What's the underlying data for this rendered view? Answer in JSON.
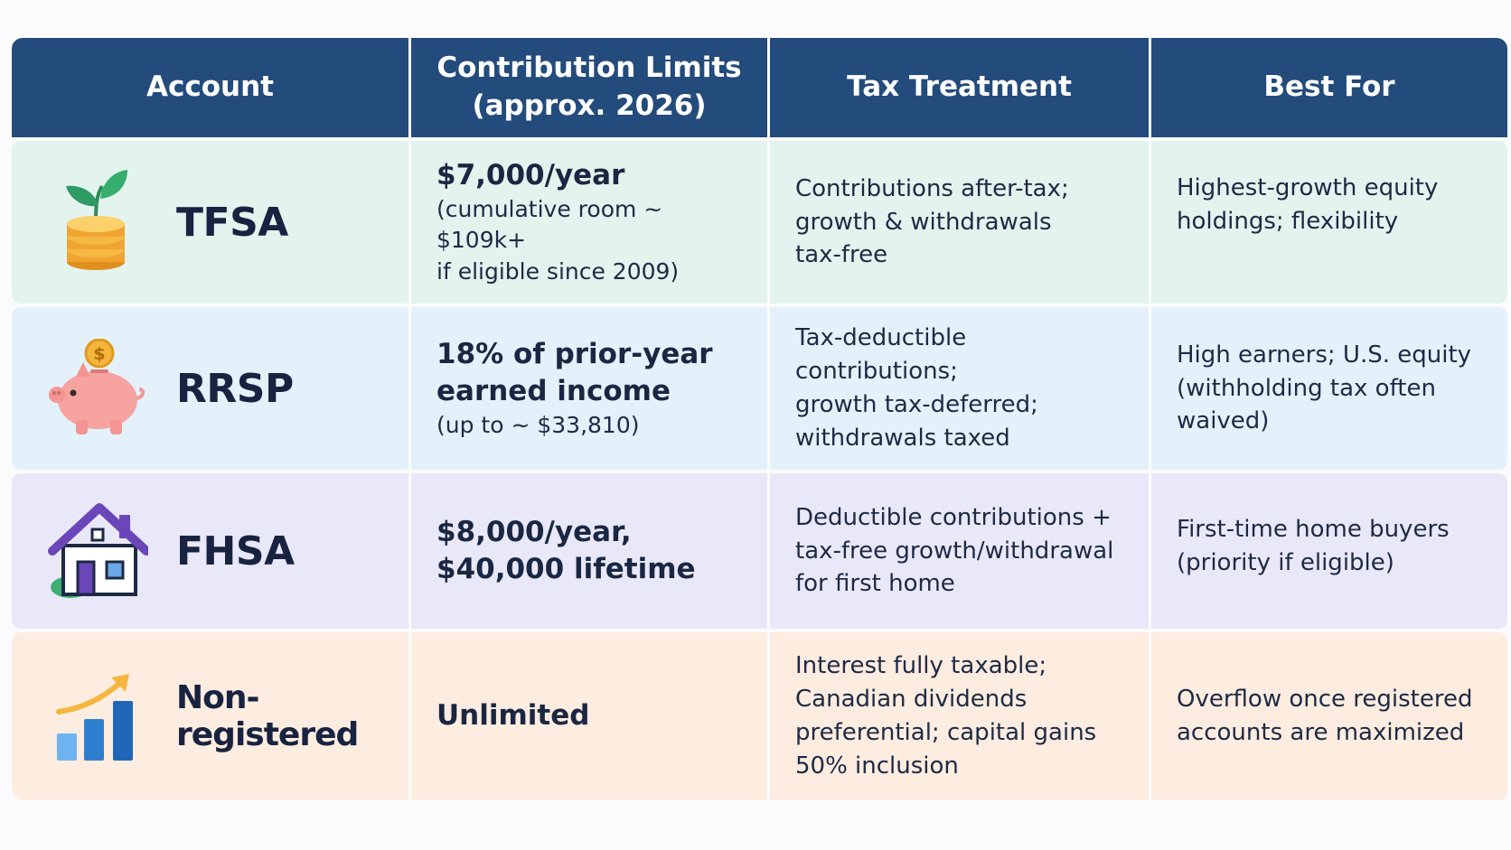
{
  "header": {
    "account": "Account",
    "limits": "Contribution Limits\n(approx. 2026)",
    "tax": "Tax Treatment",
    "best": "Best For"
  },
  "rows": [
    {
      "account": "TFSA",
      "icon": "plant-coins-icon",
      "limit_main": "$7,000/year",
      "limit_sub": "(cumulative room ~ $109k+\nif eligible since 2009)",
      "tax": "Contributions after-tax;\ngrowth & withdrawals\ntax-free",
      "best": "Highest-growth equity\nholdings; flexibility",
      "color": "#e3f3ee"
    },
    {
      "account": "RRSP",
      "icon": "piggy-bank-icon",
      "limit_main": "18% of prior-year\nearned income",
      "limit_sub": "(up to ~ $33,810)",
      "tax": "Tax-deductible contributions;\ngrowth tax-deferred;\nwithdrawals taxed",
      "best": "High earners; U.S. equity\n(withholding tax often\nwaived)",
      "color": "#e4f1fb"
    },
    {
      "account": "FHSA",
      "icon": "house-icon",
      "limit_main": "$8,000/year,\n$40,000 lifetime",
      "limit_sub": "",
      "tax": "Deductible contributions +\ntax-free growth/withdrawal\nfor first home",
      "best": "First-time home buyers\n(priority if eligible)",
      "color": "#e9e8f8"
    },
    {
      "account": "Non-registered",
      "icon": "growth-chart-icon",
      "limit_main": "Unlimited",
      "limit_sub": "",
      "tax": "Interest fully taxable;\nCanadian dividends\npreferential; capital gains\n50% inclusion",
      "best": "Overflow once registered\naccounts are maximized",
      "color": "#fdece0"
    }
  ],
  "colors": {
    "header_bg": "#234b7b",
    "header_text": "#ffffff"
  }
}
